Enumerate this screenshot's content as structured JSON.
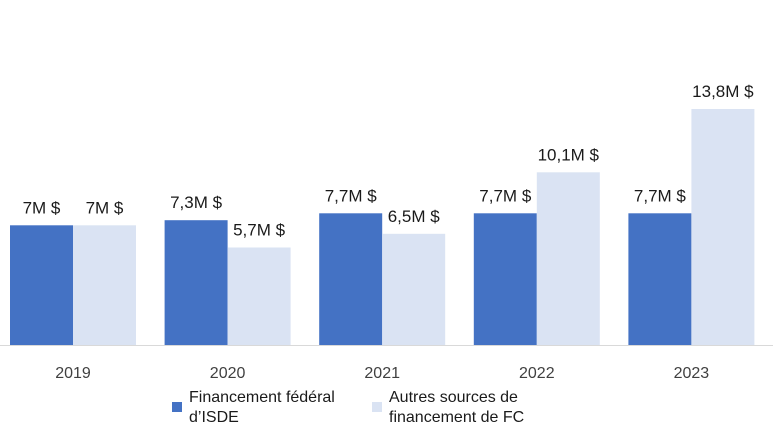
{
  "chart_data": {
    "type": "bar",
    "title": "",
    "xlabel": "",
    "ylabel": "",
    "categories": [
      "2019",
      "2020",
      "2021",
      "2022",
      "2023"
    ],
    "ylim": [
      0,
      16
    ],
    "grid": false,
    "legend_position": "bottom",
    "series": [
      {
        "name": "Financement fédéral d’ISDE",
        "color": "#4472c4",
        "values": [
          7,
          7.3,
          7.7,
          7.7,
          7.7
        ],
        "labels": [
          "7M $",
          "7,3M $",
          "7,7M $",
          "7,7M $",
          "7,7M $"
        ]
      },
      {
        "name": "Autres sources de financement de FC",
        "color": "#dae3f3",
        "values": [
          7,
          5.7,
          6.5,
          10.1,
          13.8
        ],
        "labels": [
          "7M $",
          "5,7M $",
          "6,5M $",
          "10,1M $",
          "13,8M $"
        ]
      }
    ]
  }
}
